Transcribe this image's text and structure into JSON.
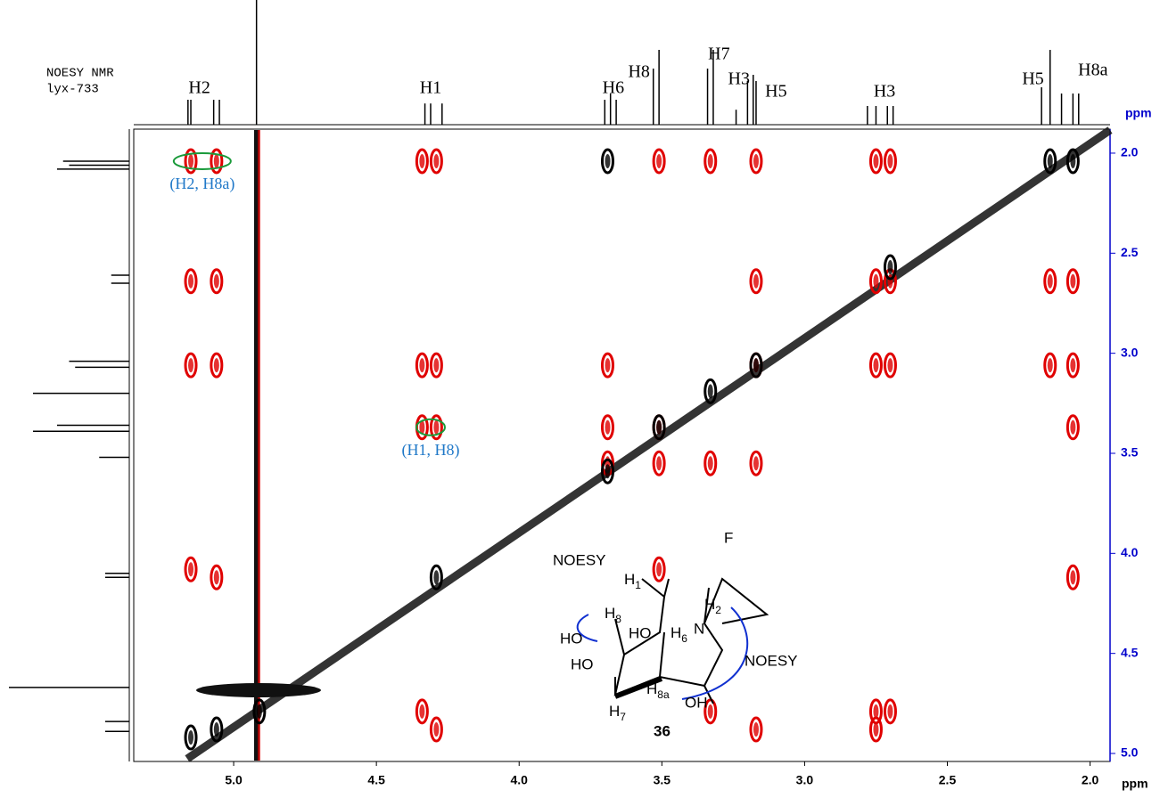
{
  "chart_data": {
    "type": "nmr-2d",
    "title_lines": [
      "NOESY  NMR",
      "lyx-733"
    ],
    "xlim": [
      5.35,
      1.93
    ],
    "ylim": [
      1.88,
      5.04
    ],
    "xticks": [
      {
        "value": 5,
        "label": "5.0"
      },
      4.5,
      {
        "value": 4,
        "label": "4.0"
      },
      3.5,
      {
        "value": 3,
        "label": "3.0"
      },
      2.5,
      {
        "value": 2,
        "label": "2.0"
      }
    ],
    "yticks": [
      {
        "value": 2,
        "label": "2.0"
      },
      2.5,
      {
        "value": 3,
        "label": "3.0"
      },
      3.5,
      {
        "value": 4,
        "label": "4.0"
      },
      4.5,
      {
        "value": 5,
        "label": "5.0"
      }
    ],
    "xlabel": "ppm",
    "ylabel": "ppm",
    "top_trace": {
      "color": "#000000",
      "x": [
        5.16,
        5.15,
        5.07,
        5.05,
        4.92,
        4.33,
        4.31,
        4.27,
        3.7,
        3.68,
        3.66,
        3.53,
        3.51,
        3.34,
        3.32,
        3.24,
        3.2,
        3.18,
        3.17,
        2.78,
        2.75,
        2.71,
        2.69,
        2.17,
        2.14,
        2.1,
        2.06,
        2.04
      ],
      "heights": [
        0.2,
        0.2,
        0.2,
        0.2,
        1.0,
        0.17,
        0.17,
        0.17,
        0.2,
        0.25,
        0.2,
        0.45,
        0.6,
        0.45,
        0.6,
        0.12,
        0.35,
        0.4,
        0.35,
        0.15,
        0.15,
        0.15,
        0.15,
        0.3,
        0.6,
        0.25,
        0.25,
        0.25
      ]
    },
    "top_labels": [
      {
        "text": "H2",
        "x": 5.12
      },
      {
        "text": "H1",
        "x": 4.31
      },
      {
        "text": "H6",
        "x": 3.67
      },
      {
        "text": "H8",
        "x": 3.58
      },
      {
        "text": "H7",
        "x": 3.3
      },
      {
        "text": "H3",
        "x": 3.23
      },
      {
        "text": "H5",
        "x": 3.1
      },
      {
        "text": "H3",
        "x": 2.72
      },
      {
        "text": "H5",
        "x": 2.2
      },
      {
        "text": "H8a",
        "x": 1.99
      }
    ],
    "left_trace": {
      "color": "#000000",
      "y": [
        2.04,
        2.06,
        2.08,
        2.61,
        2.65,
        3.04,
        3.07,
        3.2,
        3.36,
        3.39,
        3.52,
        4.1,
        4.12,
        4.67,
        4.84,
        4.89
      ],
      "heights": [
        0.55,
        0.5,
        0.6,
        0.15,
        0.15,
        0.5,
        0.45,
        0.8,
        0.6,
        0.8,
        0.25,
        0.2,
        0.2,
        1.0,
        0.2,
        0.2
      ]
    },
    "peaks": [
      {
        "color": "#e00000",
        "x": [
          5.15,
          5.06,
          4.34,
          4.29,
          3.51,
          3.33,
          3.17,
          2.75,
          2.7,
          5.15,
          5.06,
          3.17,
          2.75,
          2.7,
          2.14,
          2.06,
          5.15,
          5.06,
          4.34,
          4.29,
          3.69,
          3.17,
          2.75,
          2.7,
          2.14,
          2.06,
          4.34,
          4.29,
          3.69,
          3.51,
          2.06,
          3.69,
          3.51,
          3.33,
          3.17,
          5.15,
          3.51,
          5.06,
          2.06,
          4.34,
          3.33,
          2.75,
          2.7,
          4.29,
          3.17,
          2.75
        ],
        "y": [
          2.04,
          2.04,
          2.04,
          2.04,
          2.04,
          2.04,
          2.04,
          2.04,
          2.04,
          2.64,
          2.64,
          2.64,
          2.64,
          2.64,
          2.64,
          2.64,
          3.06,
          3.06,
          3.06,
          3.06,
          3.06,
          3.06,
          3.06,
          3.06,
          3.06,
          3.06,
          3.37,
          3.37,
          3.37,
          3.37,
          3.37,
          3.55,
          3.55,
          3.55,
          3.55,
          4.08,
          4.08,
          4.12,
          4.12,
          4.79,
          4.79,
          4.79,
          4.79,
          4.88,
          4.88,
          4.88
        ]
      },
      {
        "color": "#000000",
        "x": [
          3.69,
          2.14,
          2.06,
          3.69,
          3.51,
          3.33,
          3.17,
          2.7,
          4.29,
          4.91,
          5.06,
          5.15
        ],
        "y": [
          2.04,
          2.04,
          2.04,
          3.59,
          3.37,
          3.19,
          3.06,
          2.57,
          4.12,
          4.79,
          4.88,
          4.92
        ]
      }
    ],
    "annotations": [
      {
        "text": "(H2, H8a)",
        "x": 5.11,
        "y": 2.04
      },
      {
        "text": "(H1, H8)",
        "x": 4.31,
        "y": 3.37
      }
    ],
    "structure": {
      "labels": [
        "NOESY",
        "H",
        "1",
        "F",
        "H",
        "8",
        "H",
        "2",
        "H",
        "6",
        "N",
        "HO",
        "HO",
        "HO",
        "H",
        "8a",
        "OH",
        "H",
        "7",
        "36",
        "NOESY"
      ]
    }
  }
}
